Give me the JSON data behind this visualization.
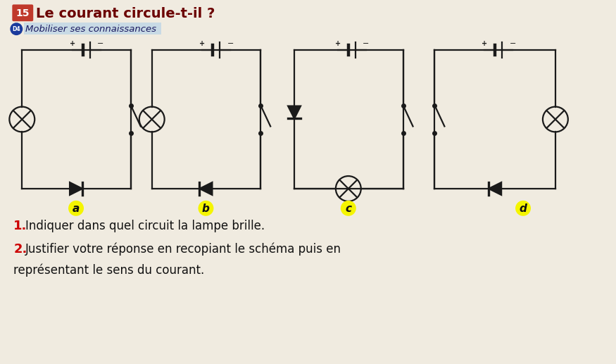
{
  "title": "Le courant circule-t-il ?",
  "title_num": "15",
  "subtitle": "Mobiliser ses connaissances",
  "bg_color": "#f0ebe0",
  "line_color": "#1a1a1a",
  "circuit_labels": [
    "a",
    "b",
    "c",
    "d"
  ],
  "label_bg": "#f5f500",
  "question1_num": "1.",
  "question1_text": " Indiquer dans quel circuit la lampe brille.",
  "question2_num": "2.",
  "question2_text": " Justifier votre réponse en recopiant le schéma puis en",
  "question3_text": "représentant le sens du courant."
}
